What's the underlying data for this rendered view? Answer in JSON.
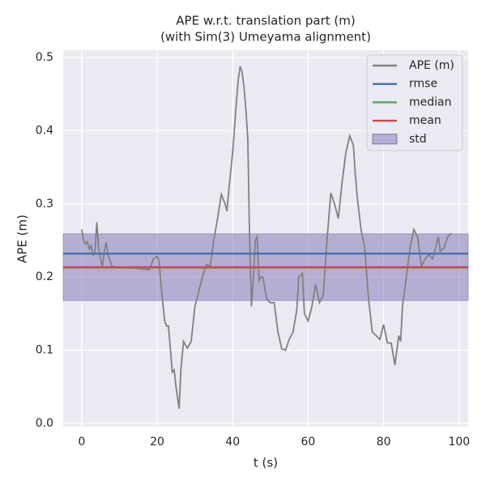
{
  "chart_data": {
    "type": "line",
    "title": "APE w.r.t. translation part (m)",
    "subtitle": "(with Sim(3) Umeyama alignment)",
    "xlabel": "t (s)",
    "ylabel": "APE (m)",
    "xlim": [
      -4.9,
      102.4
    ],
    "ylim": [
      -0.0044,
      0.51
    ],
    "xticks": [
      0,
      20,
      40,
      60,
      80,
      100
    ],
    "yticks": [
      {
        "value": 0,
        "label": "0.0"
      },
      0.1,
      0.2,
      0.3,
      0.4,
      0.5
    ],
    "grid": true,
    "legend": "upper right",
    "series": [
      {
        "name": "APE (m)",
        "color": "#808080",
        "x": [
          0,
          0.5,
          1,
          1.5,
          2,
          2.5,
          3,
          3.5,
          4,
          4.5,
          5,
          5.5,
          6,
          6.5,
          7,
          8,
          10,
          14,
          18,
          19,
          20,
          20.5,
          21,
          22,
          22.5,
          23,
          24,
          24.5,
          25,
          25.8,
          26.3,
          27,
          28,
          29,
          30,
          31,
          32,
          33,
          34,
          35,
          36,
          37,
          38,
          38.5,
          39,
          40,
          41,
          41.5,
          42,
          42.5,
          43,
          43.5,
          44,
          44.5,
          45,
          45.5,
          46,
          46.5,
          47,
          47.5,
          48,
          49,
          50,
          51,
          52,
          53,
          54,
          55,
          56,
          57,
          57.5,
          58.5,
          59,
          60,
          61,
          62,
          63,
          64,
          65,
          66,
          67,
          68,
          69,
          70,
          71,
          72,
          72.5,
          73,
          74,
          75,
          76,
          77,
          78,
          79,
          80,
          81,
          82,
          83,
          84,
          84.5,
          85,
          86,
          87,
          88,
          89,
          90,
          91,
          92,
          93,
          94,
          94.5,
          95,
          96,
          97,
          98
        ],
        "values": [
          0.265,
          0.25,
          0.245,
          0.248,
          0.238,
          0.243,
          0.23,
          0.232,
          0.275,
          0.24,
          0.225,
          0.215,
          0.235,
          0.247,
          0.23,
          0.215,
          0.213,
          0.212,
          0.21,
          0.225,
          0.228,
          0.222,
          0.19,
          0.14,
          0.133,
          0.133,
          0.07,
          0.073,
          0.05,
          0.02,
          0.075,
          0.112,
          0.103,
          0.112,
          0.16,
          0.18,
          0.2,
          0.217,
          0.215,
          0.25,
          0.28,
          0.313,
          0.3,
          0.29,
          0.32,
          0.37,
          0.44,
          0.47,
          0.488,
          0.48,
          0.46,
          0.43,
          0.39,
          0.25,
          0.16,
          0.2,
          0.25,
          0.255,
          0.195,
          0.2,
          0.2,
          0.17,
          0.165,
          0.165,
          0.125,
          0.102,
          0.1,
          0.115,
          0.125,
          0.155,
          0.2,
          0.205,
          0.15,
          0.14,
          0.16,
          0.19,
          0.165,
          0.175,
          0.25,
          0.315,
          0.3,
          0.28,
          0.33,
          0.37,
          0.393,
          0.38,
          0.34,
          0.31,
          0.265,
          0.24,
          0.17,
          0.125,
          0.12,
          0.115,
          0.135,
          0.11,
          0.11,
          0.08,
          0.12,
          0.112,
          0.16,
          0.2,
          0.24,
          0.265,
          0.255,
          0.215,
          0.225,
          0.23,
          0.225,
          0.245,
          0.255,
          0.235,
          0.24,
          0.255,
          0.26
        ]
      }
    ],
    "stats": [
      {
        "name": "rmse",
        "color": "#4c72b0",
        "value": 0.232
      },
      {
        "name": "median",
        "color": "#55a868",
        "value": 0.213
      },
      {
        "name": "mean",
        "color": "#c44e52",
        "value": 0.2135
      }
    ],
    "std": {
      "name": "std",
      "color": "#8172b2",
      "value": 0.0455
    }
  }
}
